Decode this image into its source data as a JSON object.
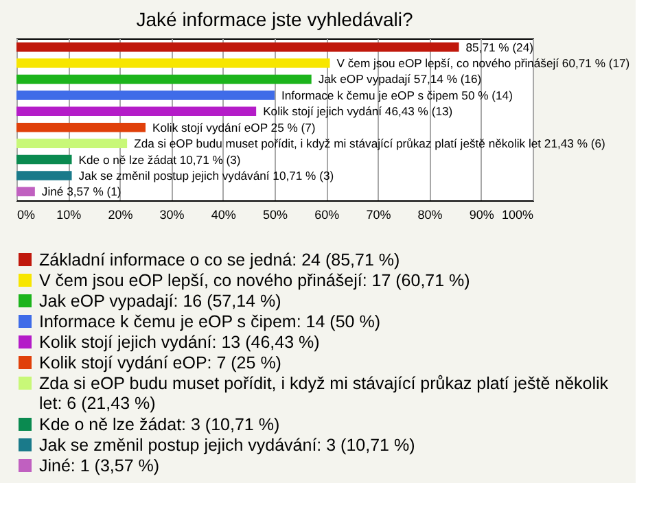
{
  "chart_data": {
    "type": "bar",
    "orientation": "horizontal",
    "title": "Jaké informace jste vyhledávali?",
    "categories": [
      null,
      null,
      null,
      null,
      null,
      null,
      null,
      null,
      null,
      null
    ],
    "series": [
      {
        "name": "Základní informace o co se jedná: 24 (85,71 %)",
        "color": "#c0180c",
        "values": [
          85.71,
          null,
          null,
          null,
          null,
          null,
          null,
          null,
          null,
          null
        ],
        "value_labels": [
          "85,71 % (24)",
          null,
          null,
          null,
          null,
          null,
          null,
          null,
          null,
          null
        ]
      },
      {
        "name": "V čem jsou eOP lepší, co nového přinášejí: 17 (60,71 %)",
        "color": "#f7e600",
        "values": [
          null,
          60.71,
          null,
          null,
          null,
          null,
          null,
          null,
          null,
          null
        ],
        "value_labels": [
          null,
          "V čem jsou eOP lepší, co nového přinášejí 60,71 % (17)",
          null,
          null,
          null,
          null,
          null,
          null,
          null,
          null
        ]
      },
      {
        "name": "Jak eOP vypadají: 16 (57,14 %)",
        "color": "#1cb41c",
        "values": [
          null,
          null,
          57.14,
          null,
          null,
          null,
          null,
          null,
          null,
          null
        ],
        "value_labels": [
          null,
          null,
          "Jak eOP vypadají 57,14 % (16)",
          null,
          null,
          null,
          null,
          null,
          null,
          null
        ]
      },
      {
        "name": "Informace k čemu je eOP s čipem: 14 (50 %)",
        "color": "#3f6ce8",
        "values": [
          null,
          null,
          null,
          50,
          null,
          null,
          null,
          null,
          null,
          null
        ],
        "value_labels": [
          null,
          null,
          null,
          "Informace k čemu je eOP s čipem 50 % (14)",
          null,
          null,
          null,
          null,
          null,
          null
        ]
      },
      {
        "name": "Kolik stojí jejich vydání: 13 (46,43 %)",
        "color": "#b41cc8",
        "values": [
          null,
          null,
          null,
          null,
          46.43,
          null,
          null,
          null,
          null,
          null
        ],
        "value_labels": [
          null,
          null,
          null,
          null,
          "Kolik stojí jejich vydání 46,43 % (13)",
          null,
          null,
          null,
          null,
          null
        ]
      },
      {
        "name": "Kolik stojí vydání eOP: 7 (25 %)",
        "color": "#e0400a",
        "values": [
          null,
          null,
          null,
          null,
          null,
          25,
          null,
          null,
          null,
          null
        ],
        "value_labels": [
          null,
          null,
          null,
          null,
          null,
          "Kolik stojí vydání eOP 25 % (7)",
          null,
          null,
          null,
          null
        ]
      },
      {
        "name": "Zda si eOP budu muset pořídit, i když mi stávající průkaz platí ještě několik let: 6 (21,43 %)",
        "color": "#c8f878",
        "values": [
          null,
          null,
          null,
          null,
          null,
          null,
          21.43,
          null,
          null,
          null
        ],
        "value_labels": [
          null,
          null,
          null,
          null,
          null,
          null,
          "Zda si eOP budu muset pořídit, i když mi stávající průkaz platí ještě několik let 21,43 % (6)",
          null,
          null,
          null
        ]
      },
      {
        "name": "Kde o ně lze žádat: 3 (10,71 %)",
        "color": "#0a8a50",
        "values": [
          null,
          null,
          null,
          null,
          null,
          null,
          null,
          10.71,
          null,
          null
        ],
        "value_labels": [
          null,
          null,
          null,
          null,
          null,
          null,
          null,
          "Kde o ně lze žádat 10,71 % (3)",
          null,
          null
        ]
      },
      {
        "name": "Jak se změnil postup jejich vydávání: 3 (10,71 %)",
        "color": "#1a7a8a",
        "values": [
          null,
          null,
          null,
          null,
          null,
          null,
          null,
          null,
          10.71,
          null
        ],
        "value_labels": [
          null,
          null,
          null,
          null,
          null,
          null,
          null,
          null,
          "Jak se změnil postup jejich vydávání 10,71 % (3)",
          null
        ]
      },
      {
        "name": "Jiné: 1 (3,57 %)",
        "color": "#c060c0",
        "values": [
          null,
          null,
          null,
          null,
          null,
          null,
          null,
          null,
          null,
          3.57
        ],
        "value_labels": [
          null,
          null,
          null,
          null,
          null,
          null,
          null,
          null,
          null,
          "Jiné 3,57 % (1)"
        ]
      }
    ],
    "xlim": [
      0,
      100
    ],
    "xticks": [
      {
        "value": 0,
        "label": "0%"
      },
      {
        "value": 10,
        "label": "10%"
      },
      {
        "value": 20,
        "label": "20%"
      },
      {
        "value": 30,
        "label": "30%"
      },
      {
        "value": 40,
        "label": "40%"
      },
      {
        "value": 50,
        "label": "50%"
      },
      {
        "value": 60,
        "label": "60%"
      },
      {
        "value": 70,
        "label": "70%"
      },
      {
        "value": 80,
        "label": "80%"
      },
      {
        "value": 90,
        "label": "90%"
      },
      {
        "value": 100,
        "label": "100%"
      }
    ],
    "grid": "x",
    "legend": "bottom",
    "tick_labels": "x"
  }
}
